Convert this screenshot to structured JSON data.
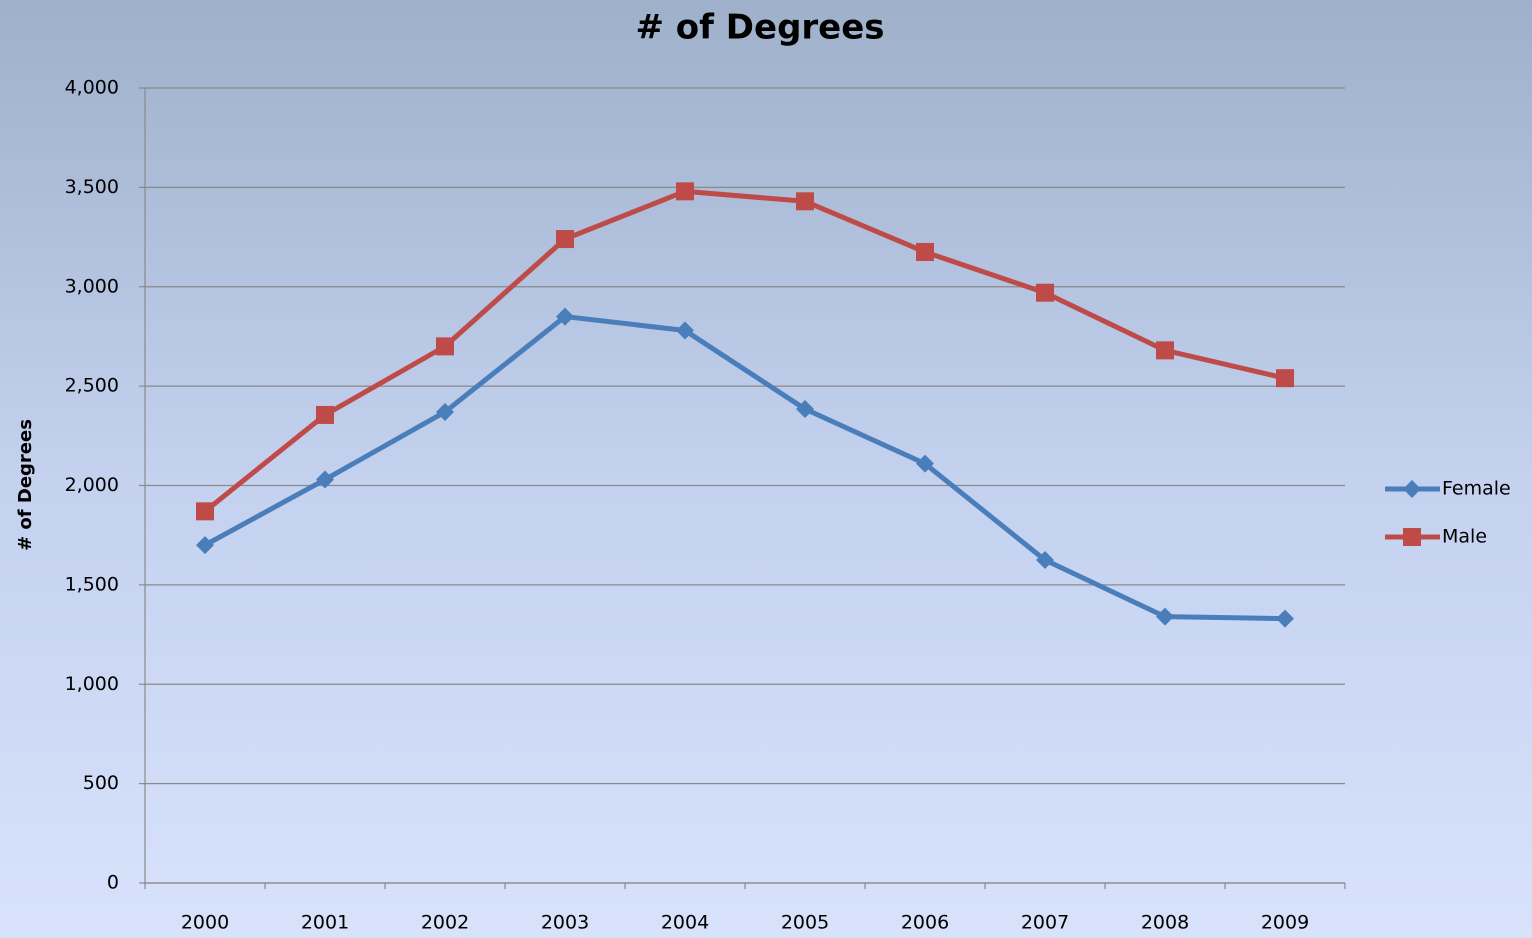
{
  "chart_data": {
    "type": "line",
    "title": "# of Degrees",
    "y_label": "# of Degrees",
    "categories": [
      "2000",
      "2001",
      "2002",
      "2003",
      "2004",
      "2005",
      "2006",
      "2007",
      "2008",
      "2009"
    ],
    "series": [
      {
        "name": "Female",
        "color": "#4a7ebb",
        "marker": "diamond",
        "values": [
          1700,
          2030,
          2370,
          2850,
          2780,
          2385,
          2110,
          1625,
          1340,
          1330
        ]
      },
      {
        "name": "Male",
        "color": "#be4b48",
        "marker": "square",
        "values": [
          1870,
          2355,
          2700,
          3240,
          3480,
          3430,
          3175,
          2970,
          2680,
          2540
        ]
      }
    ],
    "ylim": [
      0,
      4000
    ],
    "yticks": [
      0,
      500,
      {
        "value": 1000,
        "label": "1,000"
      },
      {
        "value": 1500,
        "label": "1,500"
      },
      {
        "value": 2000,
        "label": "2,000"
      },
      {
        "value": 2500,
        "label": "2,500"
      },
      {
        "value": 3000,
        "label": "3,000"
      },
      {
        "value": 3500,
        "label": "3,500"
      },
      {
        "value": 4000,
        "label": "4,000"
      }
    ],
    "grid": true,
    "legend": "right"
  }
}
